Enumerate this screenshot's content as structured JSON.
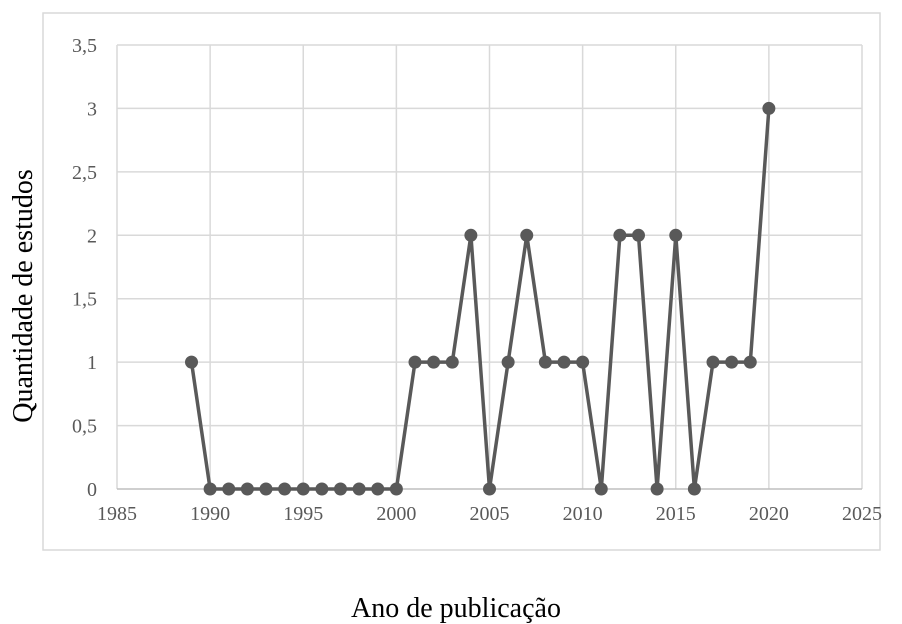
{
  "chart_data": {
    "type": "line",
    "title": "",
    "xlabel": "Ano de publicação",
    "ylabel": "Quantidade de estudos",
    "xlim": [
      1985,
      2025
    ],
    "ylim": [
      0,
      3.5
    ],
    "x_ticks": [
      1985,
      1990,
      1995,
      2000,
      2005,
      2010,
      2015,
      2020,
      2025
    ],
    "y_ticks": [
      0,
      0.5,
      1,
      1.5,
      2,
      2.5,
      3,
      3.5
    ],
    "x_tick_labels": [
      "1985",
      "1990",
      "1995",
      "2000",
      "2005",
      "2010",
      "2015",
      "2020",
      "2025"
    ],
    "y_tick_labels": [
      "0",
      "0,5",
      "1",
      "1,5",
      "2",
      "2,5",
      "3",
      "3,5"
    ],
    "grid": true,
    "legend": "none",
    "series": [
      {
        "color": "#595959",
        "marker": "circle",
        "points": [
          {
            "x": 1989,
            "y": 1
          },
          {
            "x": 1990,
            "y": 0
          },
          {
            "x": 1991,
            "y": 0
          },
          {
            "x": 1992,
            "y": 0
          },
          {
            "x": 1993,
            "y": 0
          },
          {
            "x": 1994,
            "y": 0
          },
          {
            "x": 1995,
            "y": 0
          },
          {
            "x": 1996,
            "y": 0
          },
          {
            "x": 1997,
            "y": 0
          },
          {
            "x": 1998,
            "y": 0
          },
          {
            "x": 1999,
            "y": 0
          },
          {
            "x": 2000,
            "y": 0
          },
          {
            "x": 2001,
            "y": 1
          },
          {
            "x": 2002,
            "y": 1
          },
          {
            "x": 2003,
            "y": 1
          },
          {
            "x": 2004,
            "y": 2
          },
          {
            "x": 2005,
            "y": 0
          },
          {
            "x": 2006,
            "y": 1
          },
          {
            "x": 2007,
            "y": 2
          },
          {
            "x": 2008,
            "y": 1
          },
          {
            "x": 2009,
            "y": 1
          },
          {
            "x": 2010,
            "y": 1
          },
          {
            "x": 2011,
            "y": 0
          },
          {
            "x": 2012,
            "y": 2
          },
          {
            "x": 2013,
            "y": 2
          },
          {
            "x": 2014,
            "y": 0
          },
          {
            "x": 2015,
            "y": 2
          },
          {
            "x": 2016,
            "y": 0
          },
          {
            "x": 2017,
            "y": 1
          },
          {
            "x": 2018,
            "y": 1
          },
          {
            "x": 2019,
            "y": 1
          },
          {
            "x": 2020,
            "y": 3
          }
        ]
      }
    ]
  }
}
